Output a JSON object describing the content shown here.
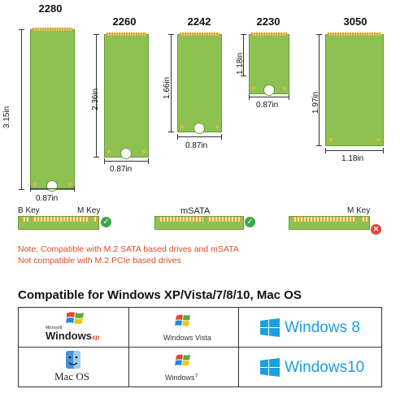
{
  "ssd_sizes": [
    {
      "name": "2280",
      "height_label": "3.15in",
      "width_label": "0.87in"
    },
    {
      "name": "2260",
      "height_label": "2.36in",
      "width_label": "0.87in"
    },
    {
      "name": "2242",
      "height_label": "1.66in",
      "width_label": "0.87in"
    },
    {
      "name": "2230",
      "height_label": "1.18in",
      "width_label": "0.87in"
    },
    {
      "name": "3050",
      "height_label": "1.97in",
      "width_label": "1.18in"
    }
  ],
  "connectors": [
    {
      "left_key": "B Key",
      "right_key": "M Key",
      "status": "compatible",
      "status_icon": "check-icon"
    },
    {
      "label": "mSATA",
      "status": "compatible",
      "status_icon": "check-icon"
    },
    {
      "right_key": "M Key",
      "status": "incompatible",
      "status_icon": "cross-icon"
    }
  ],
  "colors": {
    "board": "#8dc152",
    "note": "#e04b2a",
    "check": "#3aa84a",
    "cross": "#e0433b",
    "win8_blue": "#1aa0e0"
  },
  "notes": {
    "line1": "Note: Compatible with M.2 SATA based drives and mSATA",
    "line2": "Not compatible with M.2 PCIe based drives"
  },
  "compat": {
    "title": "Compatible for Windows XP/Vista/7/8/10, Mac OS",
    "os": [
      {
        "brand": "Windows",
        "suffix": "xp",
        "small": "Microsoft"
      },
      {
        "brand": "Windows Vista"
      },
      {
        "brand": "Windows 8"
      },
      {
        "brand": "Mac OS"
      },
      {
        "brand": "Windows",
        "suffix": "7"
      },
      {
        "brand": "Windows10"
      }
    ]
  }
}
